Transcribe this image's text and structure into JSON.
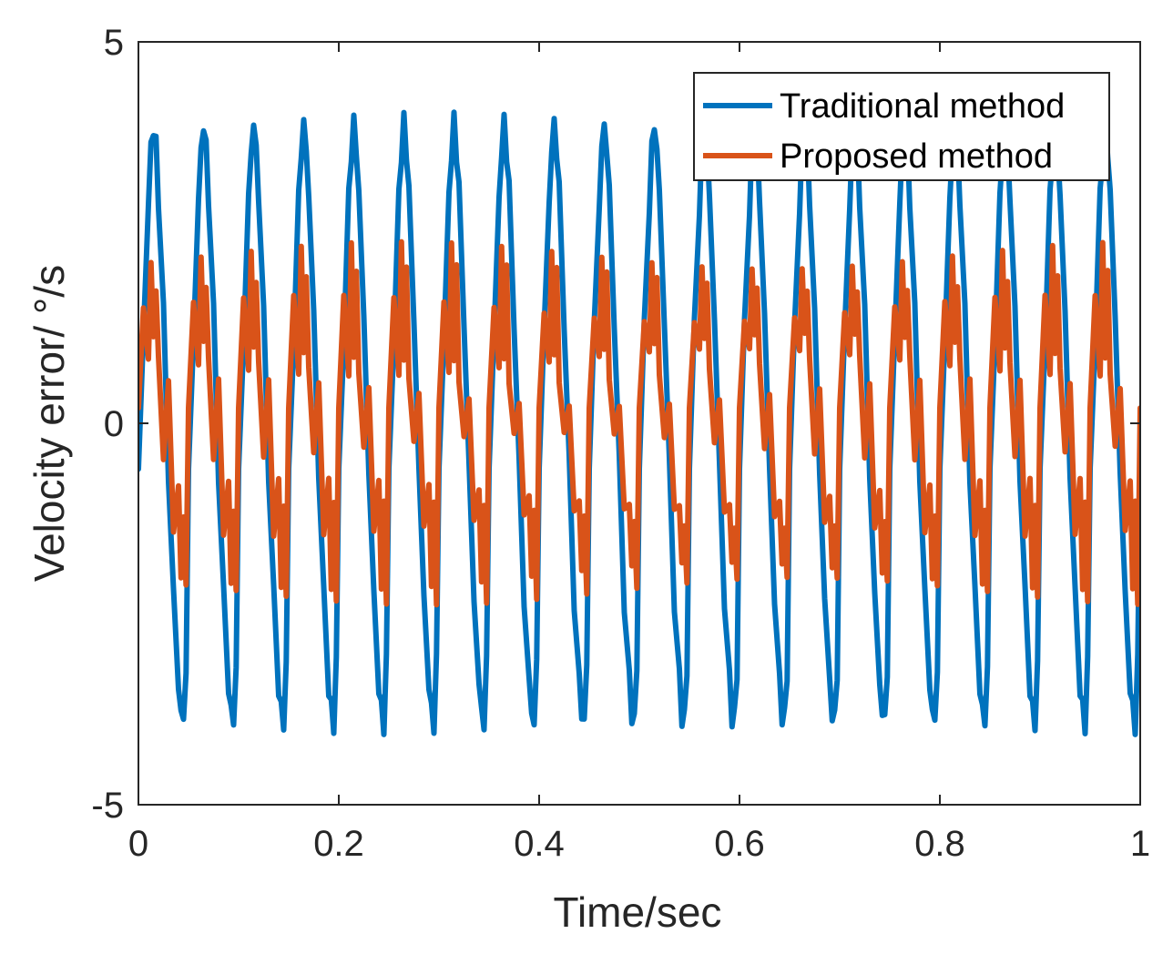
{
  "chart_data": {
    "type": "line",
    "title": "",
    "xlabel": "Time/sec",
    "ylabel": "Velocity error/ °/s",
    "xlim": [
      0,
      1
    ],
    "ylim": [
      -5,
      5
    ],
    "xticks": [
      "0",
      "0.2",
      "0.4",
      "0.6",
      "0.8",
      "1"
    ],
    "yticks": [
      "-5",
      "0",
      "5"
    ],
    "grid": false,
    "legend_position": "top-right",
    "series": [
      {
        "name": "Traditional method",
        "color": "#0072BD",
        "period": 0.05,
        "amplitude": 3.8,
        "description_values": {
          "max": 3.9,
          "min": -4.0
        },
        "x": [
          0,
          0.005,
          0.01,
          0.0125,
          0.015,
          0.0175,
          0.02,
          0.025,
          0.03,
          0.035,
          0.04,
          0.0425,
          0.045,
          0.0475,
          0.05
        ],
        "y": [
          -0.6,
          1.2,
          2.9,
          3.6,
          3.9,
          3.6,
          3.0,
          1.4,
          -0.6,
          -2.3,
          -3.4,
          -3.8,
          -3.9,
          -3.2,
          -0.6
        ]
      },
      {
        "name": "Proposed method",
        "color": "#D95319",
        "period": 0.05,
        "amplitude": 1.6,
        "description_values": {
          "max": 2.3,
          "min": -2.4
        },
        "x": [
          0,
          0.005,
          0.01,
          0.0125,
          0.015,
          0.0175,
          0.02,
          0.025,
          0.03,
          0.035,
          0.04,
          0.0425,
          0.045,
          0.0475,
          0.05
        ],
        "y": [
          0.2,
          1.5,
          0.8,
          2.2,
          1.0,
          1.9,
          0.7,
          -0.3,
          0.4,
          -1.3,
          -0.9,
          -2.0,
          -1.2,
          -2.2,
          0.2
        ]
      }
    ]
  }
}
